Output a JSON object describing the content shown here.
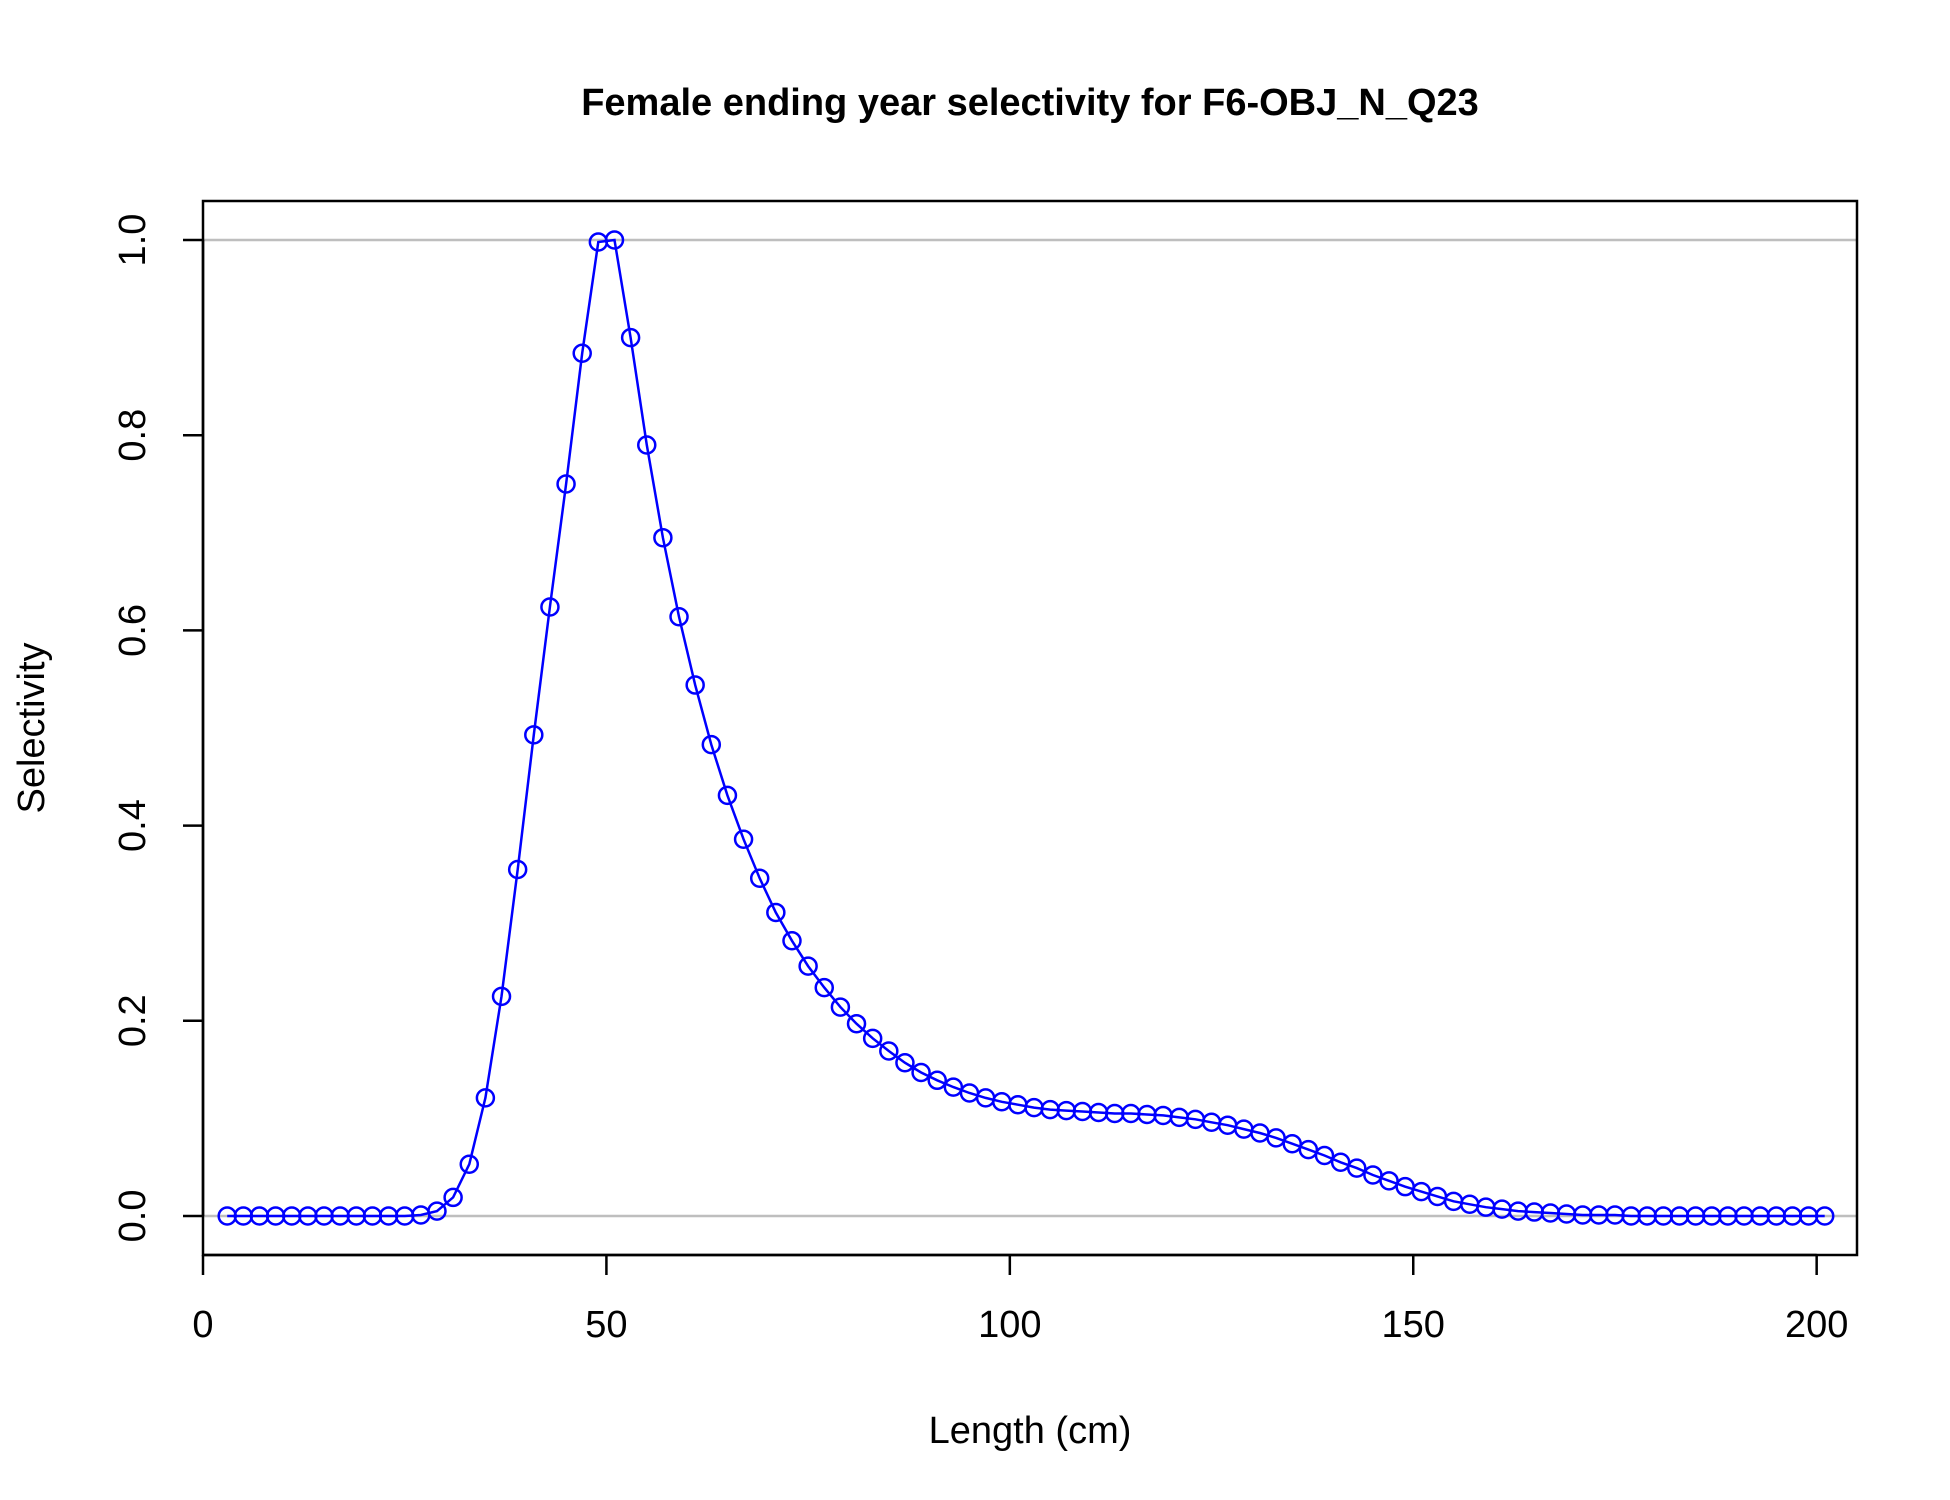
{
  "chart_data": {
    "type": "line",
    "title": "Female ending year selectivity for F6-OBJ_N_Q23",
    "xlabel": "Length (cm)",
    "ylabel": "Selectivity",
    "xlim": [
      0,
      205
    ],
    "ylim": [
      -0.04,
      1.04
    ],
    "xticks": [
      0,
      50,
      100,
      150,
      200
    ],
    "xtick_labels": [
      "0",
      "50",
      "100",
      "150",
      "200"
    ],
    "yticks": [
      0,
      0.2,
      0.4,
      0.6,
      0.8,
      1.0
    ],
    "ytick_labels": [
      "0.0",
      "0.2",
      "0.4",
      "0.6",
      "0.8",
      "1.0"
    ],
    "reference_lines": [
      0,
      1
    ],
    "line_color": "#0000FF",
    "ref_line_color": "#BEBEBE",
    "marker": "open-circle",
    "grid": false,
    "series": [
      {
        "x": [
          3,
          5,
          7,
          9,
          11,
          13,
          15,
          17,
          19,
          21,
          23,
          25,
          27,
          29,
          31,
          33,
          35,
          37,
          39,
          41,
          43,
          45,
          47,
          49,
          51,
          53,
          55,
          57,
          59,
          61,
          63,
          65,
          67,
          69,
          71,
          73,
          75,
          77,
          79,
          81,
          83,
          85,
          87,
          89,
          91,
          93,
          95,
          97,
          99,
          101,
          103,
          105,
          107,
          109,
          111,
          113,
          115,
          117,
          119,
          121,
          123,
          125,
          127,
          129,
          131,
          133,
          135,
          137,
          139,
          141,
          143,
          145,
          147,
          149,
          151,
          153,
          155,
          157,
          159,
          161,
          163,
          165,
          167,
          169,
          171,
          173,
          175,
          177,
          179,
          181,
          183,
          185,
          187,
          189,
          191,
          193,
          195,
          197,
          199,
          201
        ],
        "y": [
          0,
          0,
          0,
          0,
          0,
          0,
          0,
          0,
          0,
          0,
          0,
          0,
          0.001,
          0.005,
          0.019,
          0.053,
          0.121,
          0.225,
          0.355,
          0.493,
          0.624,
          0.75,
          0.884,
          0.998,
          1.0,
          0.9,
          0.79,
          0.695,
          0.614,
          0.544,
          0.483,
          0.431,
          0.386,
          0.346,
          0.311,
          0.282,
          0.256,
          0.234,
          0.214,
          0.197,
          0.182,
          0.169,
          0.157,
          0.147,
          0.139,
          0.132,
          0.126,
          0.121,
          0.117,
          0.114,
          0.111,
          0.109,
          0.108,
          0.107,
          0.106,
          0.105,
          0.105,
          0.104,
          0.103,
          0.101,
          0.099,
          0.096,
          0.093,
          0.089,
          0.085,
          0.08,
          0.074,
          0.068,
          0.062,
          0.055,
          0.049,
          0.042,
          0.036,
          0.03,
          0.025,
          0.02,
          0.015,
          0.012,
          0.009,
          0.007,
          0.005,
          0.004,
          0.003,
          0.002,
          0.001,
          0.001,
          0.001,
          0,
          0,
          0,
          0,
          0,
          0,
          0,
          0,
          0,
          0,
          0,
          0,
          0
        ]
      }
    ]
  }
}
